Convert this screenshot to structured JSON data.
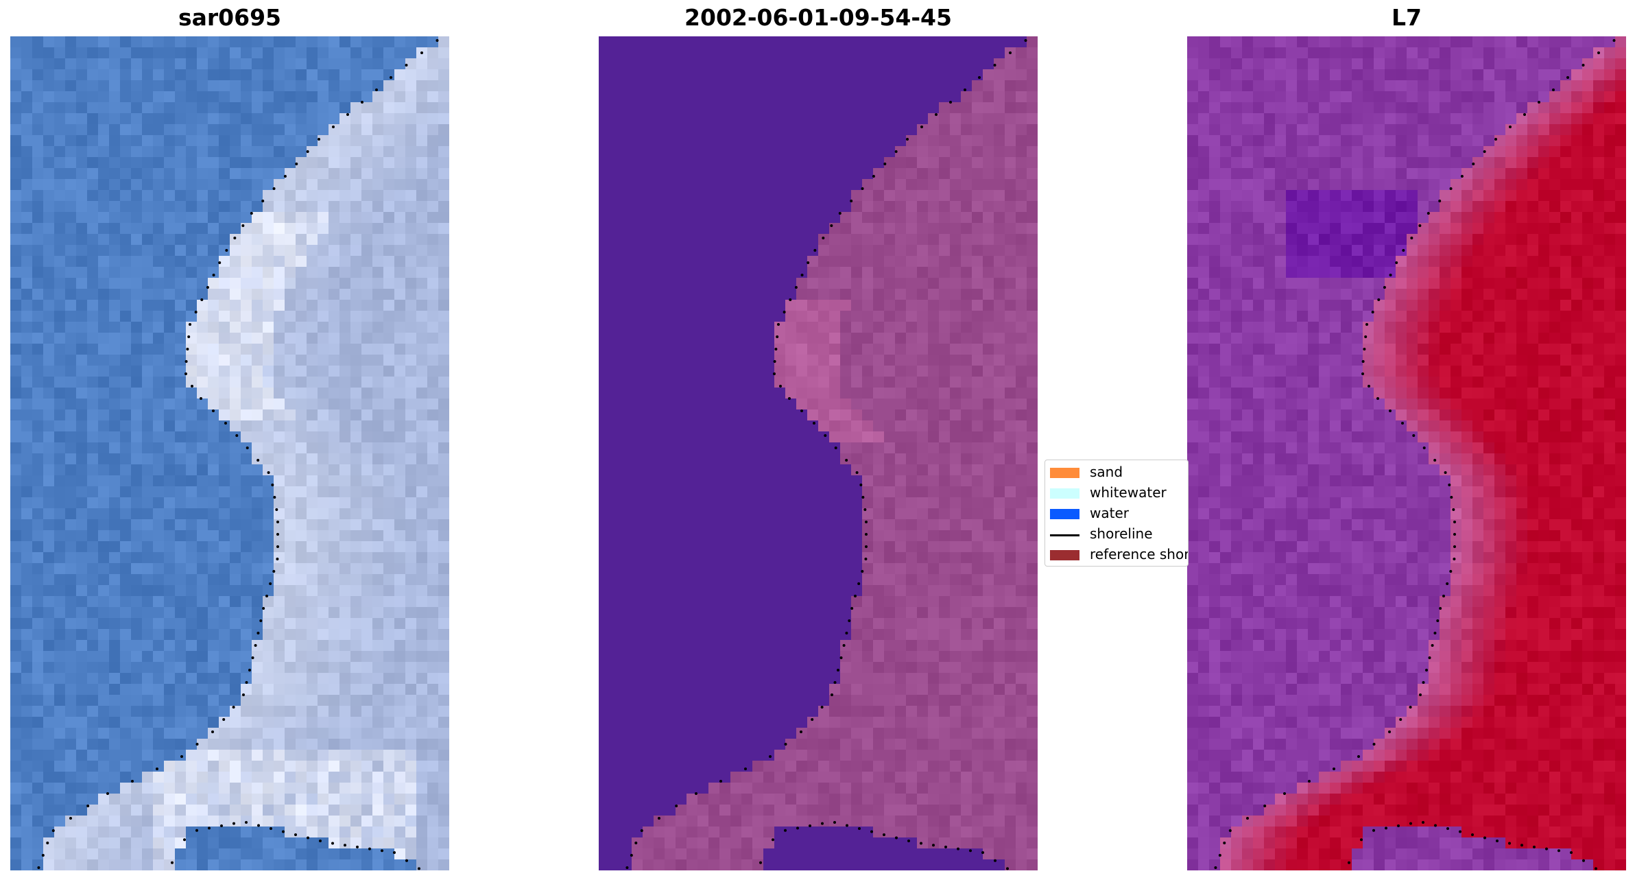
{
  "panels": [
    {
      "title": "sar0695",
      "kind": "rgb"
    },
    {
      "title": "2002-06-01-09-54-45",
      "kind": "classified"
    },
    {
      "title": "L7",
      "kind": "mndwi"
    }
  ],
  "legend": {
    "items": [
      {
        "label": "sand",
        "color": "#ff8c3a",
        "type": "patch"
      },
      {
        "label": "whitewater",
        "color": "#ccffff",
        "type": "patch"
      },
      {
        "label": "water",
        "color": "#0a5aff",
        "type": "patch"
      },
      {
        "label": "shoreline",
        "color": "#000000",
        "type": "line"
      },
      {
        "label": "reference shoreline",
        "color": "#9b2d30",
        "type": "patch"
      }
    ]
  },
  "colors": {
    "rgb_water": "#4e7fc4",
    "rgb_land": "#a9b8dd",
    "rgb_white": "#f4f6ff",
    "class_water": "#542296",
    "class_land": "#9a4c8e",
    "mndwi_water": "#8a3aa5",
    "mndwi_land": "#c0062e",
    "mndwi_mid": "#c25a9c"
  }
}
